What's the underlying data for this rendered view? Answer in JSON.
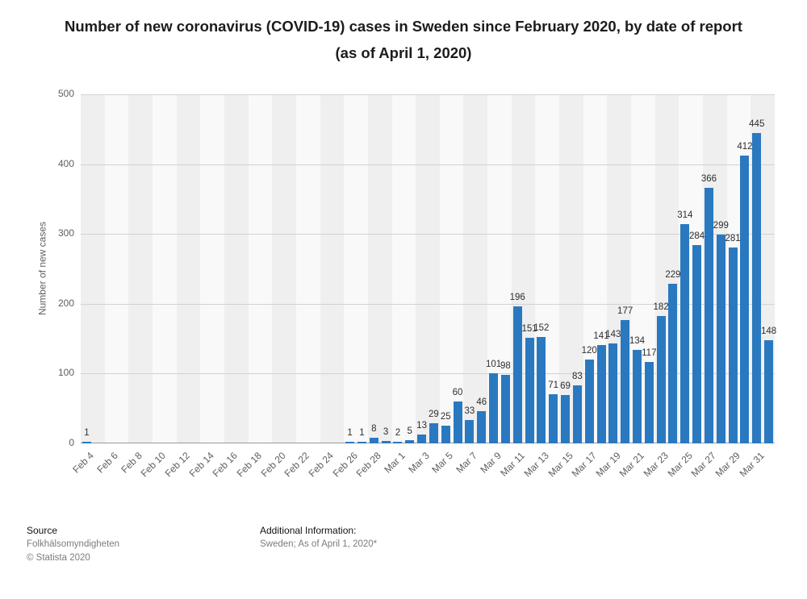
{
  "title": "Number of new coronavirus (COVID-19) cases in Sweden since February 2020, by date of report (as of April 1, 2020)",
  "chart_data": {
    "type": "bar",
    "title": "Number of new coronavirus (COVID-19) cases in Sweden since February 2020, by date of report (as of April 1, 2020)",
    "xlabel": "",
    "ylabel": "Number of new cases",
    "ylim": [
      0,
      500
    ],
    "yticks": [
      0,
      100,
      200,
      300,
      400,
      500
    ],
    "xtick_step": 2,
    "grid": true,
    "legend": "none",
    "bar_color": "#2a79c0",
    "categories": [
      "Feb 4",
      "Feb 5",
      "Feb 6",
      "Feb 7",
      "Feb 8",
      "Feb 9",
      "Feb 10",
      "Feb 11",
      "Feb 12",
      "Feb 13",
      "Feb 14",
      "Feb 15",
      "Feb 16",
      "Feb 17",
      "Feb 18",
      "Feb 19",
      "Feb 20",
      "Feb 21",
      "Feb 22",
      "Feb 23",
      "Feb 24",
      "Feb 25",
      "Feb 26",
      "Feb 27",
      "Feb 28",
      "Feb 29",
      "Mar 1",
      "Mar 2",
      "Mar 3",
      "Mar 4",
      "Mar 5",
      "Mar 6",
      "Mar 7",
      "Mar 8",
      "Mar 9",
      "Mar 10",
      "Mar 11",
      "Mar 12",
      "Mar 13",
      "Mar 14",
      "Mar 15",
      "Mar 16",
      "Mar 17",
      "Mar 18",
      "Mar 19",
      "Mar 20",
      "Mar 21",
      "Mar 22",
      "Mar 23",
      "Mar 24",
      "Mar 25",
      "Mar 26",
      "Mar 27",
      "Mar 28",
      "Mar 29",
      "Mar 30",
      "Mar 31",
      "Apr 1"
    ],
    "values": [
      1,
      0,
      0,
      0,
      0,
      0,
      0,
      0,
      0,
      0,
      0,
      0,
      0,
      0,
      0,
      0,
      0,
      0,
      0,
      0,
      0,
      0,
      1,
      1,
      8,
      3,
      2,
      5,
      13,
      29,
      25,
      60,
      33,
      46,
      101,
      98,
      196,
      151,
      152,
      71,
      69,
      83,
      120,
      141,
      143,
      177,
      134,
      117,
      182,
      229,
      314,
      284,
      366,
      299,
      281,
      412,
      445,
      148
    ]
  },
  "footer": {
    "source_label": "Source",
    "source_value": "Folkhälsomyndigheten",
    "copyright": "© Statista 2020",
    "additional_label": "Additional Information:",
    "additional_value": "Sweden; As of April 1, 2020*"
  }
}
